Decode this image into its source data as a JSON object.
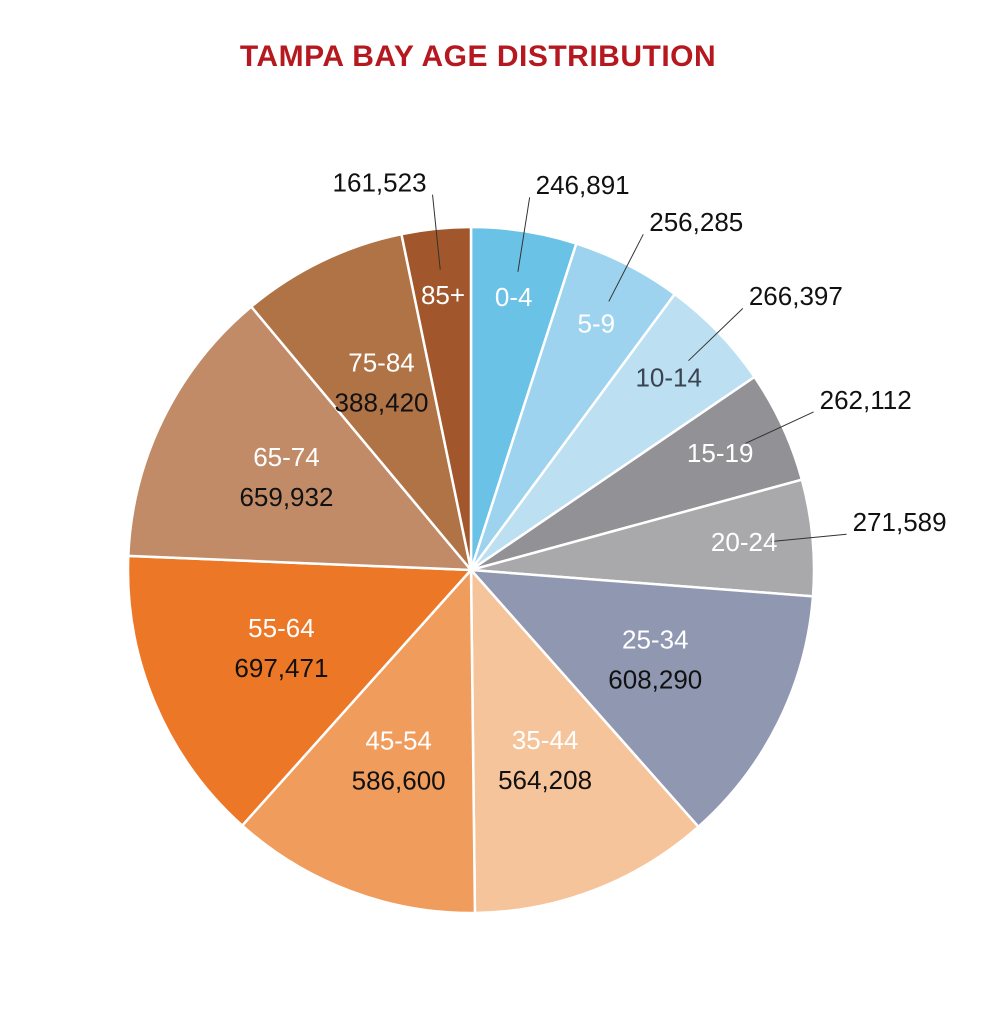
{
  "title": "TAMPA BAY AGE DISTRIBUTION",
  "title_color": "#b5191f",
  "chart_data": {
    "type": "pie",
    "title": "TAMPA BAY AGE DISTRIBUTION",
    "start": "12 o'clock, clockwise",
    "slices": [
      {
        "label": "0-4",
        "value_label": "246,891",
        "value": 246891,
        "color": "#6ac2e6",
        "label_style": "light"
      },
      {
        "label": "5-9",
        "value_label": "256,285",
        "value": 256285,
        "color": "#9dd3ee",
        "label_style": "light"
      },
      {
        "label": "10-14",
        "value_label": "266,397",
        "value": 266397,
        "color": "#bcdff2",
        "label_style": "dark"
      },
      {
        "label": "15-19",
        "value_label": "262,112",
        "value": 262112,
        "color": "#929296",
        "label_style": "light"
      },
      {
        "label": "20-24",
        "value_label": "271,589",
        "value": 271589,
        "color": "#a9a8ab",
        "label_style": "light"
      },
      {
        "label": "25-34",
        "value_label": "608,290",
        "value": 608290,
        "color": "#9097b1",
        "label_style": "light"
      },
      {
        "label": "35-44",
        "value_label": "564,208",
        "value": 564208,
        "color": "#f6c49b",
        "label_style": "light"
      },
      {
        "label": "45-54",
        "value_label": "586,600",
        "value": 586600,
        "color": "#f09c5d",
        "label_style": "light"
      },
      {
        "label": "55-64",
        "value_label": "697,471",
        "value": 697471,
        "color": "#ec7726",
        "label_style": "light"
      },
      {
        "label": "65-74",
        "value_label": "659,932",
        "value": 659932,
        "color": "#c28b68",
        "label_style": "light"
      },
      {
        "label": "75-84",
        "value_label": "388,420",
        "value": 388420,
        "color": "#b07346",
        "label_style": "light"
      },
      {
        "label": "85+",
        "value_label": "161,523",
        "value": 161523,
        "color": "#a1572b",
        "label_style": "light"
      }
    ]
  }
}
